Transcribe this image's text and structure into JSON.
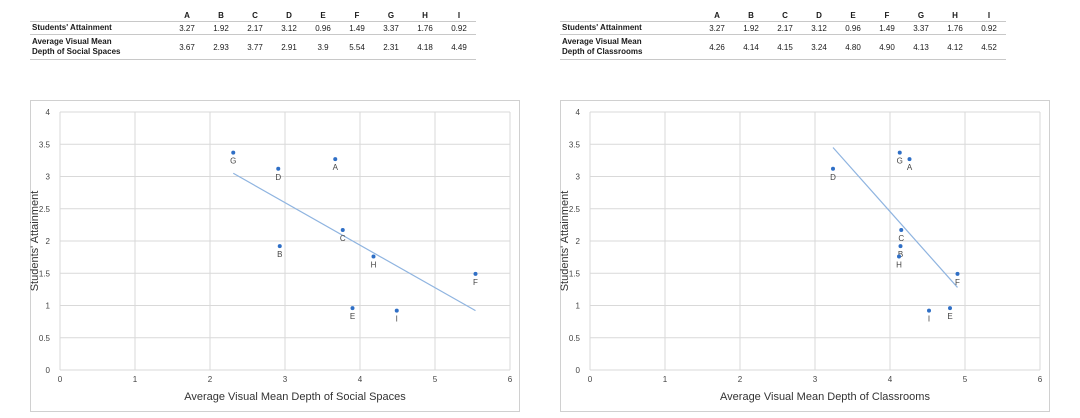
{
  "charts": [
    {
      "table": {
        "headers": [
          "A",
          "B",
          "C",
          "D",
          "E",
          "F",
          "G",
          "H",
          "I"
        ],
        "row1_label": "Students' Attainment",
        "row1_values": [
          "3.27",
          "1.92",
          "2.17",
          "3.12",
          "0.96",
          "1.49",
          "3.37",
          "1.76",
          "0.92"
        ],
        "row2_label_line1": "Average Visual Mean",
        "row2_label_line2": "Depth of Social Spaces",
        "row2_values": [
          "3.67",
          "2.93",
          "3.77",
          "2.91",
          "3.9",
          "5.54",
          "2.31",
          "4.18",
          "4.49"
        ]
      }
    },
    {
      "table": {
        "headers": [
          "A",
          "B",
          "C",
          "D",
          "E",
          "F",
          "G",
          "H",
          "I"
        ],
        "row1_label": "Students' Attainment",
        "row1_values": [
          "3.27",
          "1.92",
          "2.17",
          "3.12",
          "0.96",
          "1.49",
          "3.37",
          "1.76",
          "0.92"
        ],
        "row2_label_line1": "Average Visual Mean",
        "row2_label_line2": "Depth of Classrooms",
        "row2_values": [
          "4.26",
          "4.14",
          "4.15",
          "3.24",
          "4.80",
          "4.90",
          "4.13",
          "4.12",
          "4.52"
        ]
      }
    }
  ],
  "chart_data": [
    {
      "type": "scatter",
      "xlabel": "Average Visual Mean Depth of Social Spaces",
      "ylabel": "Students' Attainment",
      "xlim": [
        0,
        6
      ],
      "ylim": [
        0,
        4
      ],
      "xticks": [
        "0",
        "1",
        "2",
        "3",
        "4",
        "5",
        "6"
      ],
      "yticks": [
        "0",
        "0.5",
        "1",
        "1.5",
        "2",
        "2.5",
        "3",
        "3.5",
        "4"
      ],
      "grid": true,
      "points": [
        {
          "label": "A",
          "x": 3.67,
          "y": 3.27
        },
        {
          "label": "B",
          "x": 2.93,
          "y": 1.92
        },
        {
          "label": "C",
          "x": 3.77,
          "y": 2.17
        },
        {
          "label": "D",
          "x": 2.91,
          "y": 3.12
        },
        {
          "label": "E",
          "x": 3.9,
          "y": 0.96
        },
        {
          "label": "F",
          "x": 5.54,
          "y": 1.49
        },
        {
          "label": "G",
          "x": 2.31,
          "y": 3.37
        },
        {
          "label": "H",
          "x": 4.18,
          "y": 1.76
        },
        {
          "label": "I",
          "x": 4.49,
          "y": 0.92
        }
      ],
      "trendline": {
        "x1": 2.31,
        "y1": 3.05,
        "x2": 5.54,
        "y2": 0.92
      },
      "point_color": "#2f6fc6",
      "line_color": "#8fb4e0"
    },
    {
      "type": "scatter",
      "xlabel": "Average Visual Mean Depth of Classrooms",
      "ylabel": "Students' Attainment",
      "xlim": [
        0,
        6
      ],
      "ylim": [
        0,
        4
      ],
      "xticks": [
        "0",
        "1",
        "2",
        "3",
        "4",
        "5",
        "6"
      ],
      "yticks": [
        "0",
        "0.5",
        "1",
        "1.5",
        "2",
        "2.5",
        "3",
        "3.5",
        "4"
      ],
      "grid": true,
      "points": [
        {
          "label": "A",
          "x": 4.26,
          "y": 3.27
        },
        {
          "label": "B",
          "x": 4.14,
          "y": 1.92
        },
        {
          "label": "C",
          "x": 4.15,
          "y": 2.17
        },
        {
          "label": "D",
          "x": 3.24,
          "y": 3.12
        },
        {
          "label": "E",
          "x": 4.8,
          "y": 0.96
        },
        {
          "label": "F",
          "x": 4.9,
          "y": 1.49
        },
        {
          "label": "G",
          "x": 4.13,
          "y": 3.37
        },
        {
          "label": "H",
          "x": 4.12,
          "y": 1.76
        },
        {
          "label": "I",
          "x": 4.52,
          "y": 0.92
        }
      ],
      "trendline": {
        "x1": 3.24,
        "y1": 3.45,
        "x2": 4.9,
        "y2": 1.28
      },
      "point_color": "#2f6fc6",
      "line_color": "#8fb4e0"
    }
  ]
}
